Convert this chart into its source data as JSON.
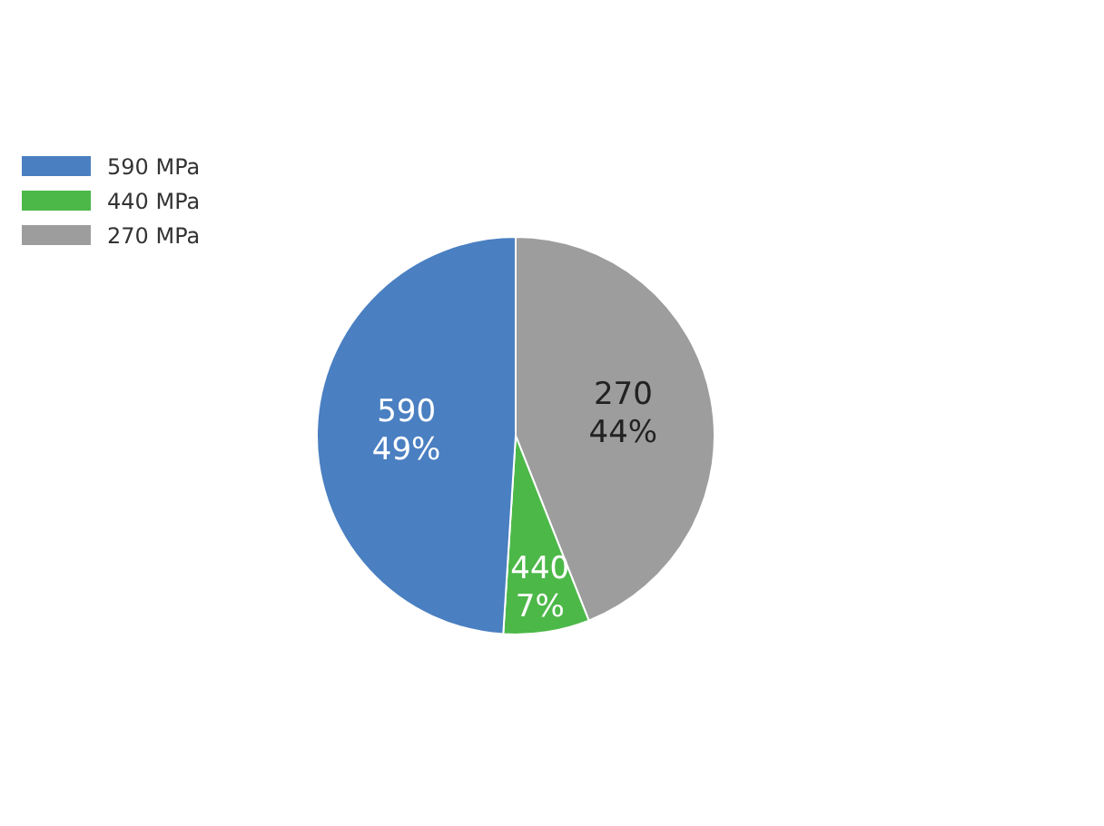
{
  "chart_data": {
    "type": "pie",
    "categories": [
      "590 MPa",
      "440 MPa",
      "270 MPa"
    ],
    "values": [
      49,
      7,
      44
    ],
    "colors": [
      "#4a7fc1",
      "#4cb848",
      "#9d9d9e"
    ],
    "value_labels": [
      "590\n49%",
      "440\n7%",
      "270\n44%"
    ],
    "legend": "top left"
  }
}
